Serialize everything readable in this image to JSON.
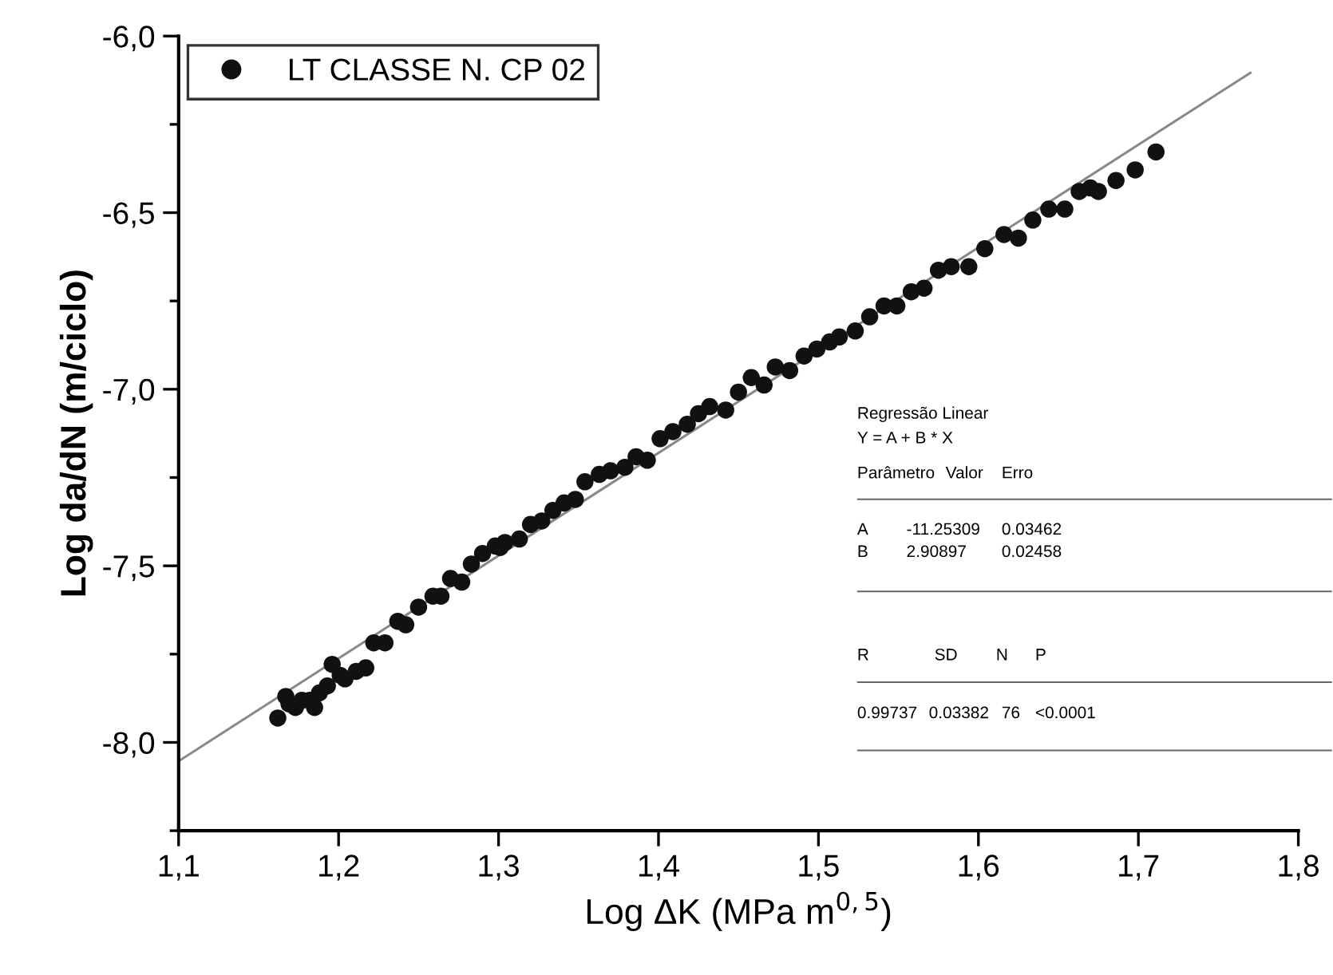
{
  "chart_data": {
    "type": "scatter",
    "xlabel": "Log ΔK (MPa m$^{0,5}$)",
    "ylabel": "Log da/dN (m/ciclo)",
    "xlim": [
      1.1,
      1.8
    ],
    "ylim": [
      -8.25,
      -6.0
    ],
    "xticks": [
      {
        "value": 1.1,
        "label": "1,1"
      },
      {
        "value": 1.2,
        "label": "1,2"
      },
      {
        "value": 1.3,
        "label": "1,3"
      },
      {
        "value": 1.4,
        "label": "1,4"
      },
      {
        "value": 1.5,
        "label": "1,5"
      },
      {
        "value": 1.6,
        "label": "1,6"
      },
      {
        "value": 1.7,
        "label": "1,7"
      },
      {
        "value": 1.8,
        "label": "1,8"
      }
    ],
    "yticks": [
      {
        "value": -8.25,
        "label": null
      },
      {
        "value": -8.0,
        "label": "-8,0"
      },
      {
        "value": -7.75,
        "label": null
      },
      {
        "value": -7.5,
        "label": "-7,5"
      },
      {
        "value": -7.25,
        "label": null
      },
      {
        "value": -7.0,
        "label": "-7,0"
      },
      {
        "value": -6.75,
        "label": null
      },
      {
        "value": -6.5,
        "label": "-6,5"
      },
      {
        "value": -6.25,
        "label": null
      },
      {
        "value": -6.0,
        "label": "-6,0"
      }
    ],
    "grid": false,
    "legend": "top left",
    "series": [
      {
        "name": "LT CLASSE N. CP 02",
        "type": "scatter",
        "marker": "circle",
        "color": "#111111",
        "x": [
          1.162,
          1.167,
          1.169,
          1.173,
          1.177,
          1.182,
          1.185,
          1.188,
          1.193,
          1.196,
          1.201,
          1.204,
          1.211,
          1.217,
          1.222,
          1.229,
          1.237,
          1.242,
          1.25,
          1.259,
          1.264,
          1.27,
          1.277,
          1.283,
          1.29,
          1.298,
          1.301,
          1.304,
          1.313,
          1.32,
          1.327,
          1.334,
          1.341,
          1.348,
          1.354,
          1.363,
          1.37,
          1.379,
          1.386,
          1.393,
          1.401,
          1.409,
          1.418,
          1.425,
          1.432,
          1.442,
          1.45,
          1.458,
          1.466,
          1.473,
          1.482,
          1.491,
          1.499,
          1.507,
          1.513,
          1.523,
          1.532,
          1.541,
          1.549,
          1.558,
          1.566,
          1.575,
          1.583,
          1.594,
          1.604,
          1.616,
          1.625,
          1.634,
          1.644,
          1.654,
          1.663,
          1.67,
          1.675,
          1.686,
          1.698,
          1.711
        ],
        "values": [
          -7.931,
          -7.87,
          -7.891,
          -7.901,
          -7.881,
          -7.881,
          -7.901,
          -7.86,
          -7.84,
          -7.779,
          -7.81,
          -7.82,
          -7.799,
          -7.789,
          -7.718,
          -7.718,
          -7.657,
          -7.667,
          -7.617,
          -7.586,
          -7.586,
          -7.536,
          -7.546,
          -7.495,
          -7.465,
          -7.444,
          -7.448,
          -7.434,
          -7.424,
          -7.383,
          -7.373,
          -7.343,
          -7.322,
          -7.312,
          -7.262,
          -7.241,
          -7.231,
          -7.221,
          -7.191,
          -7.201,
          -7.14,
          -7.12,
          -7.099,
          -7.069,
          -7.049,
          -7.059,
          -7.008,
          -6.967,
          -6.988,
          -6.937,
          -6.947,
          -6.906,
          -6.886,
          -6.866,
          -6.852,
          -6.835,
          -6.795,
          -6.764,
          -6.764,
          -6.724,
          -6.714,
          -6.663,
          -6.653,
          -6.653,
          -6.602,
          -6.562,
          -6.572,
          -6.521,
          -6.49,
          -6.49,
          -6.44,
          -6.43,
          -6.44,
          -6.409,
          -6.379,
          -6.328
        ]
      },
      {
        "type": "line",
        "marker": "none",
        "line_style": "solid",
        "color": "#888888",
        "x": [
          1.1,
          1.77
        ],
        "values": [
          -8.053,
          -6.104
        ]
      }
    ],
    "annotations": [
      "Regressão Linear",
      "Y = A + B * X",
      "Parâmetro",
      "Valor",
      "Erro",
      "A",
      "-11.25309",
      "0.03462",
      "B",
      "2.90897",
      "0.02458",
      "R",
      "SD",
      "N",
      "P",
      "0.99737",
      "0.03382",
      "76",
      "<0.0001"
    ]
  }
}
